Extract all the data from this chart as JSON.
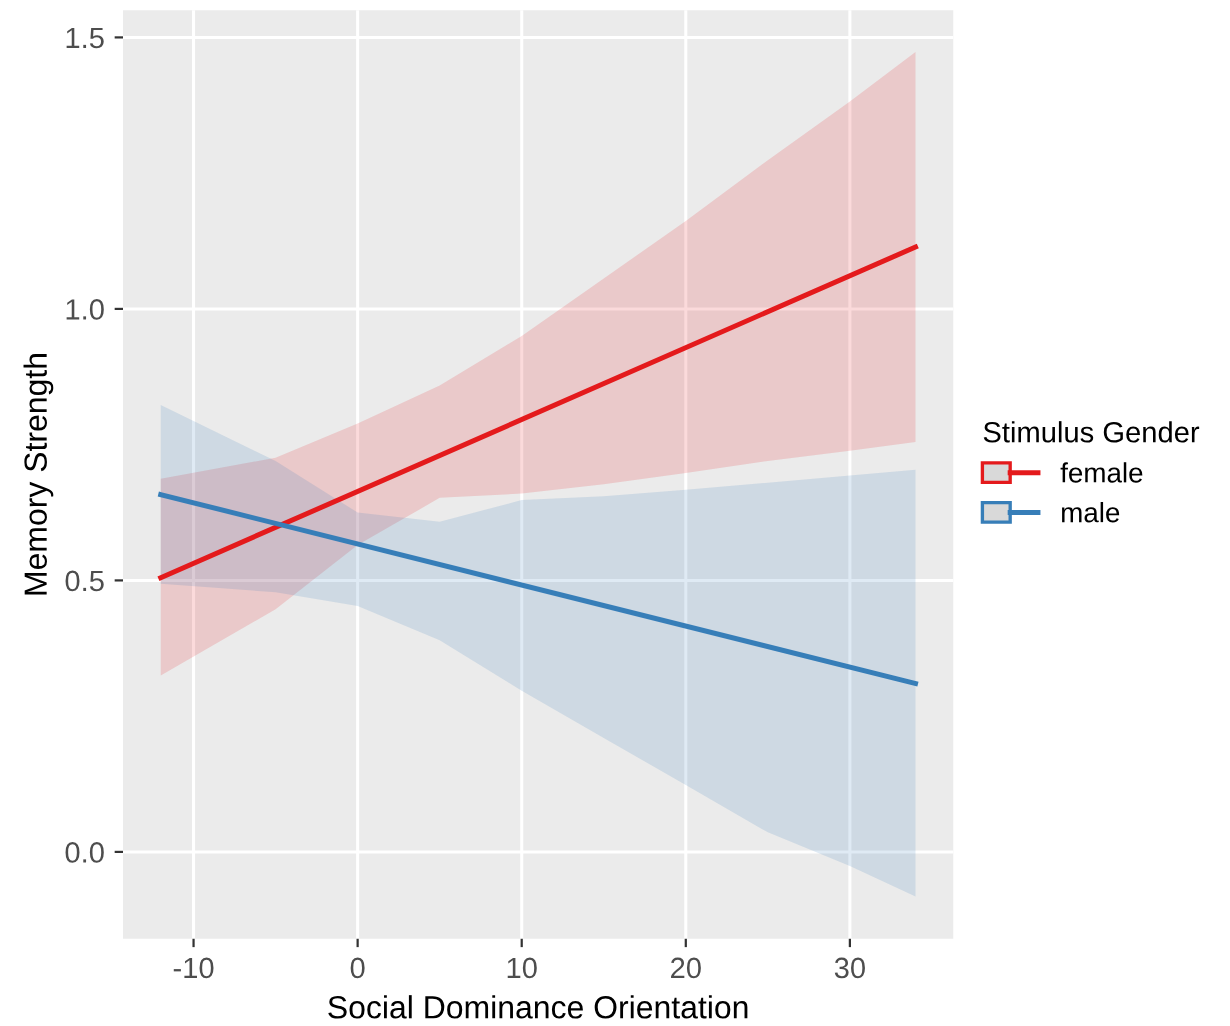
{
  "chart_data": {
    "type": "line",
    "xlabel": "Social Dominance Orientation",
    "ylabel": "Memory Strength",
    "legend_title": "Stimulus Gender",
    "x": [
      -12,
      -5,
      0,
      5,
      10,
      15,
      20,
      25,
      30,
      34
    ],
    "series": [
      {
        "name": "female",
        "color": "#e41a1c",
        "values": [
          0.505,
          null,
          null,
          null,
          null,
          null,
          null,
          null,
          null,
          1.114
        ],
        "lower": [
          0.325,
          0.447,
          0.565,
          0.652,
          0.66,
          0.677,
          0.698,
          0.72,
          0.739,
          0.755
        ],
        "upper": [
          0.687,
          0.726,
          0.789,
          0.859,
          0.95,
          1.056,
          1.162,
          1.274,
          1.382,
          1.473
        ]
      },
      {
        "name": "male",
        "color": "#377eb8",
        "values": [
          0.658,
          null,
          null,
          null,
          null,
          null,
          null,
          null,
          null,
          0.31
        ],
        "lower": [
          0.494,
          0.478,
          0.453,
          0.39,
          0.297,
          0.21,
          0.123,
          0.036,
          -0.026,
          -0.082
        ],
        "upper": [
          0.823,
          0.72,
          0.625,
          0.608,
          0.648,
          0.655,
          0.667,
          0.68,
          0.693,
          0.704
        ]
      }
    ],
    "xlim": [
      -14.3,
      36.3
    ],
    "ylim": [
      -0.16,
      1.55
    ],
    "xticks": [
      -10,
      0,
      10,
      20,
      30
    ],
    "yticks": [
      {
        "value": 0,
        "label": "0.0"
      },
      0.5,
      {
        "value": 1,
        "label": "1.0"
      },
      1.5
    ],
    "grid": true,
    "legend": "right",
    "marker": "none",
    "line_style": "solid"
  }
}
